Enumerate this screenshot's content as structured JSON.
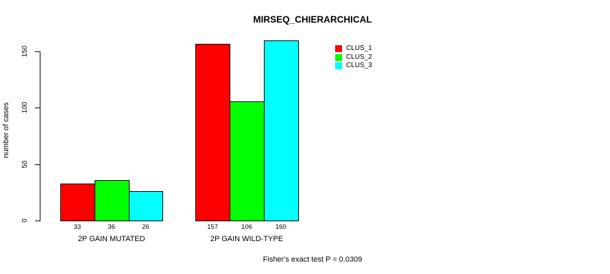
{
  "chart_data": {
    "type": "bar",
    "title": "MIRSEQ_CHIERARCHICAL",
    "ylabel": "number of cases",
    "xlabel": "",
    "yticks": [
      0,
      50,
      100,
      150
    ],
    "ylim": [
      0,
      160
    ],
    "grid": false,
    "legend_position": "top-right",
    "categories": [
      "2P GAIN MUTATED",
      "2P GAIN WILD-TYPE"
    ],
    "series": [
      {
        "name": "CLUS_1",
        "color": "#ff0000",
        "values": [
          33,
          157
        ]
      },
      {
        "name": "CLUS_2",
        "color": "#00ff00",
        "values": [
          36,
          106
        ]
      },
      {
        "name": "CLUS_3",
        "color": "#00ffff",
        "values": [
          26,
          160
        ]
      }
    ],
    "bar_value_labels": true,
    "annotation": "Fisher's exact test P = 0.0309"
  }
}
